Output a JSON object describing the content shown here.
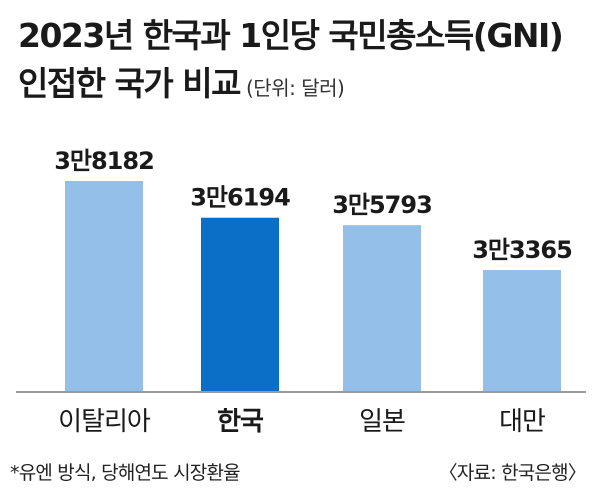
{
  "title": {
    "line1": "2023년 한국과 1인당 국민총소득(GNI)",
    "line2": "인접한 국가 비교",
    "unit": "(단위: 달러)"
  },
  "chart_data": {
    "type": "bar",
    "title": "2023년 한국과 1인당 국민총소득(GNI) 인접한 국가 비교",
    "ylabel": "",
    "xlabel": "",
    "unit": "달러",
    "categories": [
      "이탈리아",
      "한국",
      "일본",
      "대만"
    ],
    "values": [
      38182,
      36194,
      35793,
      33365
    ],
    "value_labels": [
      "3만8182",
      "3만6194",
      "3만5793",
      "3만3365"
    ],
    "highlight": "한국",
    "colors": {
      "default": "#94bfe8",
      "highlight": "#0b6fc7",
      "baseline": "#9a9a9a"
    },
    "grid": false,
    "legend": "none"
  },
  "footer": {
    "note": "*유엔 방식, 당해연도 시장환율",
    "source": "〈자료: 한국은행〉"
  }
}
